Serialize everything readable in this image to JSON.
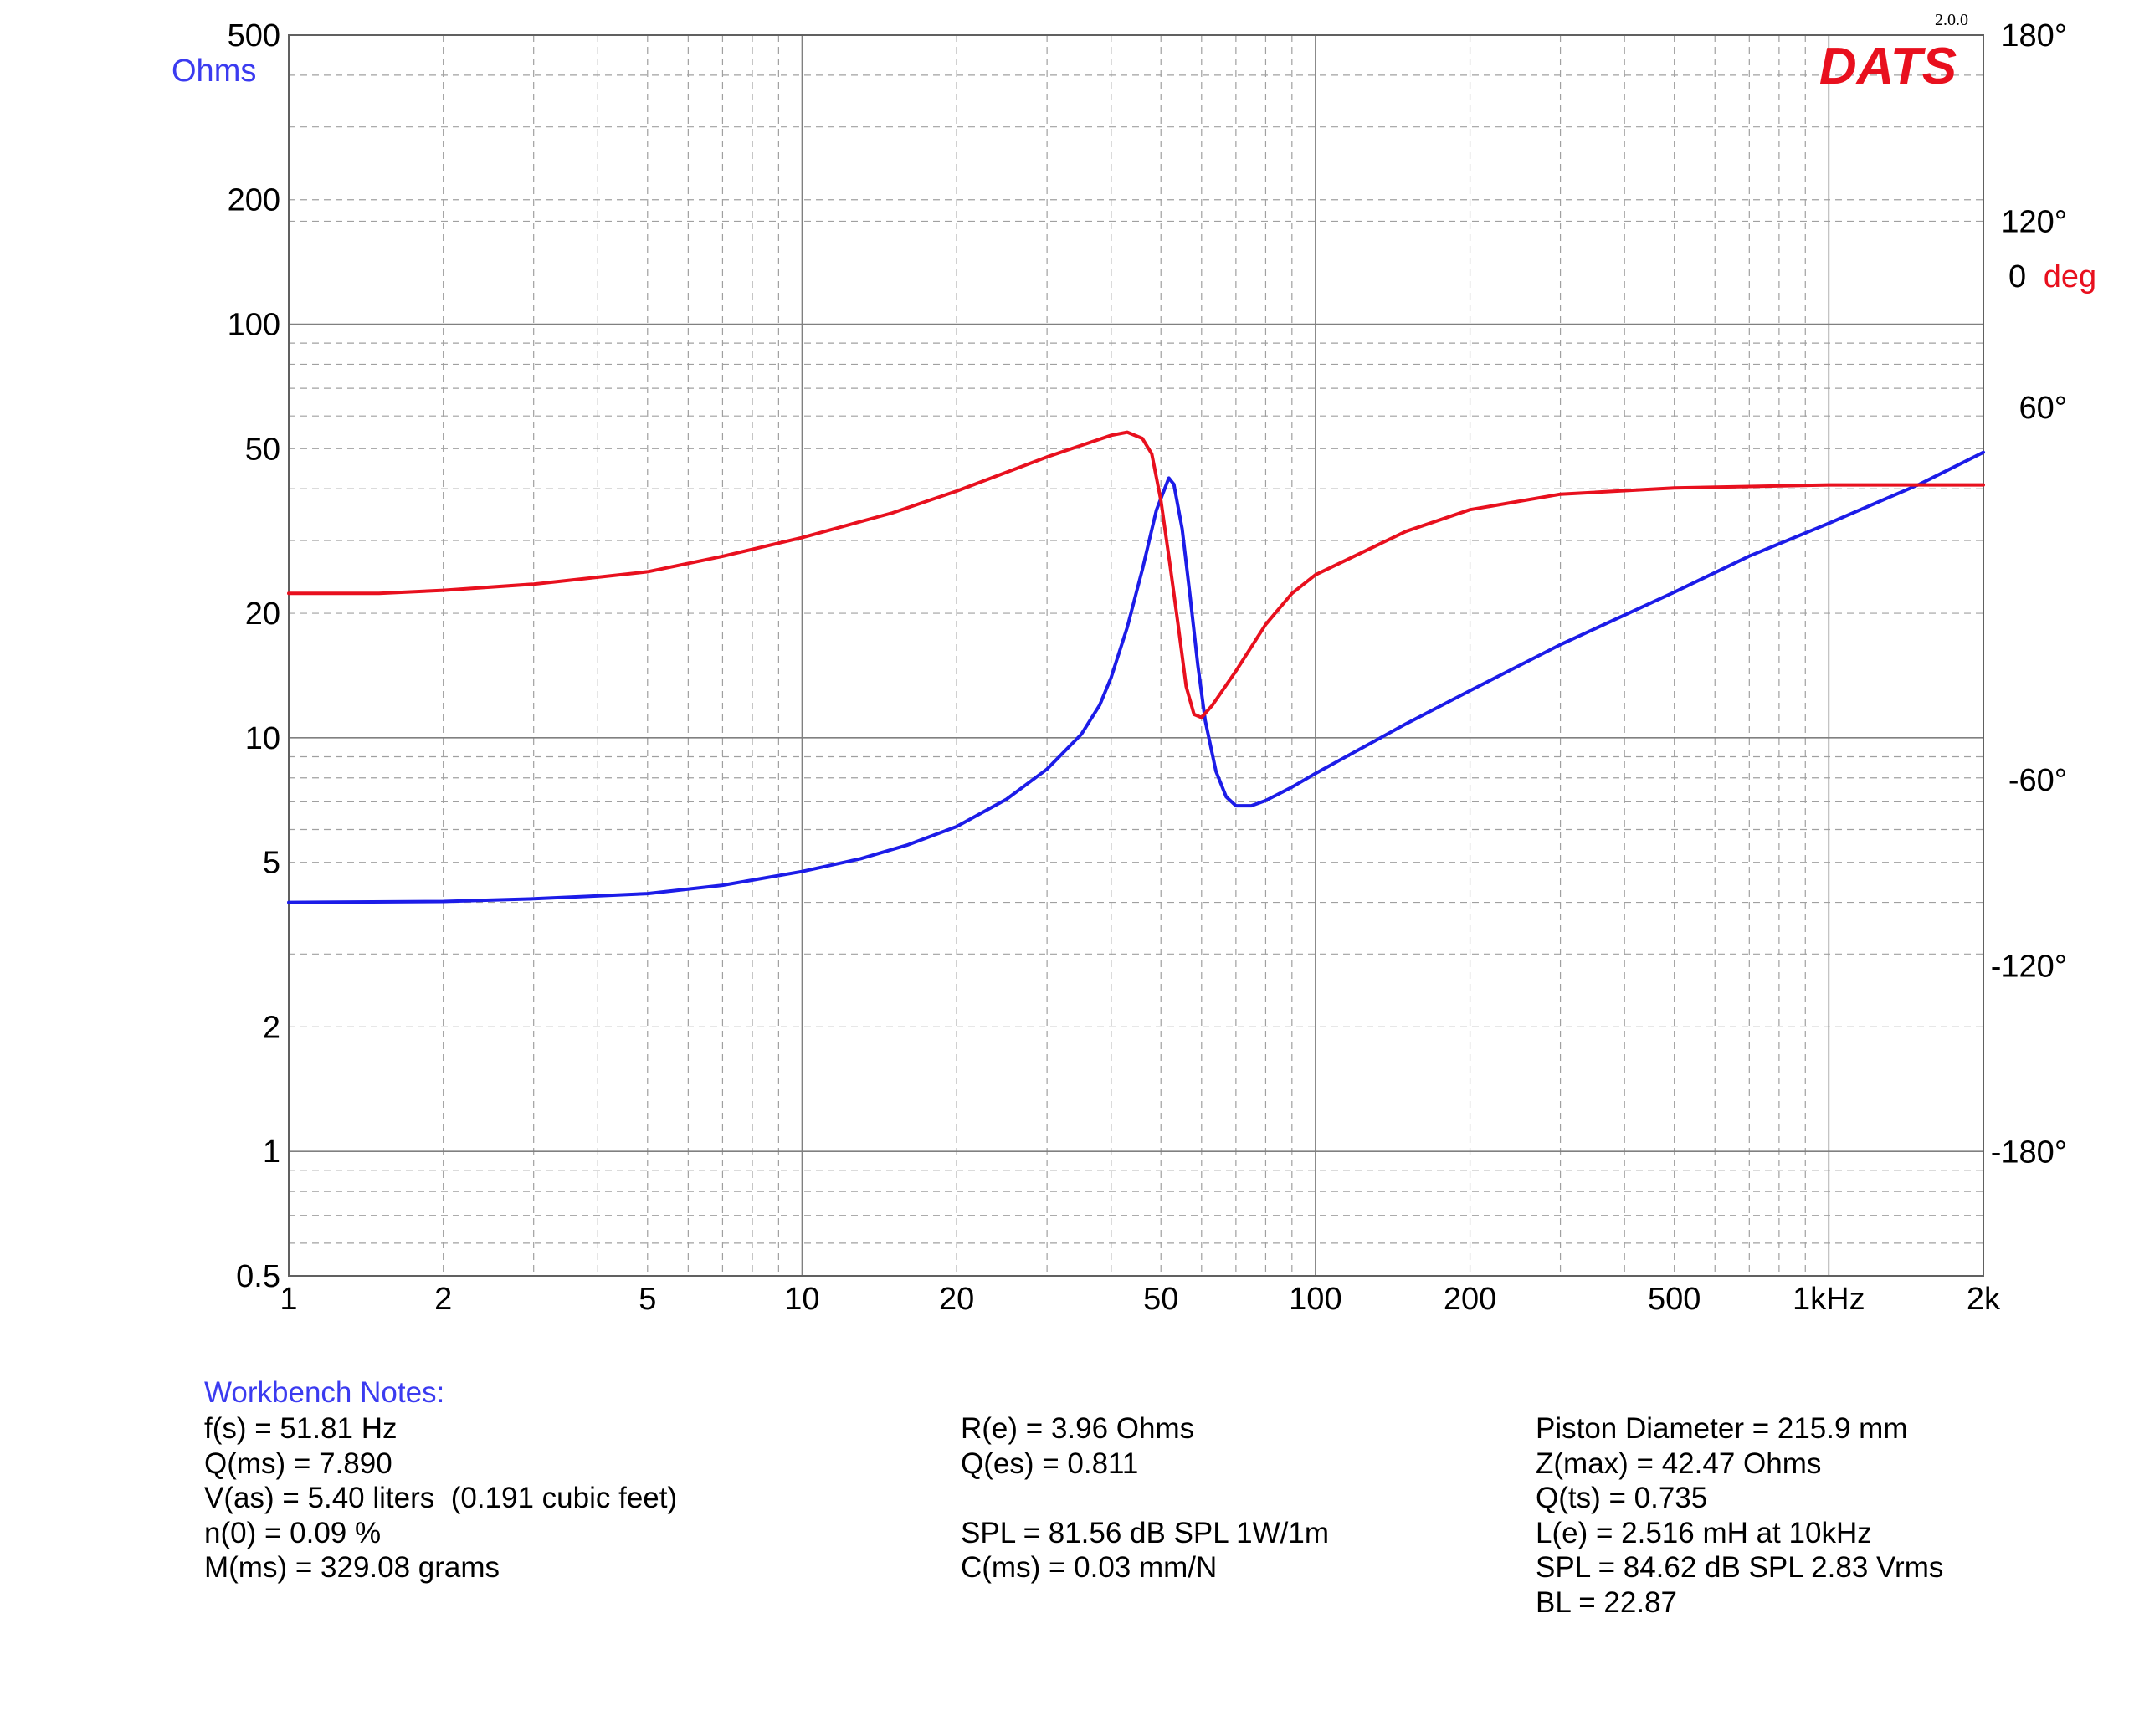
{
  "chart_data": {
    "type": "line",
    "title": "",
    "version": "2.0.0",
    "logo_text": "DATS",
    "xlabel": "",
    "x_scale": "log",
    "xlim": [
      1,
      2000
    ],
    "x_ticks": [
      {
        "value": 1,
        "label": "1"
      },
      {
        "value": 2,
        "label": "2"
      },
      {
        "value": 5,
        "label": "5"
      },
      {
        "value": 10,
        "label": "10"
      },
      {
        "value": 20,
        "label": "20"
      },
      {
        "value": 50,
        "label": "50"
      },
      {
        "value": 100,
        "label": "100"
      },
      {
        "value": 200,
        "label": "200"
      },
      {
        "value": 500,
        "label": "500"
      },
      {
        "value": 1000,
        "label": "1kHz"
      },
      {
        "value": 2000,
        "label": "2k"
      }
    ],
    "y_left": {
      "label": "Ohms",
      "scale": "log",
      "range": [
        0.5,
        500
      ],
      "ticks": [
        {
          "value": 500,
          "label": "500"
        },
        {
          "value": 200,
          "label": "200"
        },
        {
          "value": 100,
          "label": "100"
        },
        {
          "value": 50,
          "label": "50"
        },
        {
          "value": 20,
          "label": "20"
        },
        {
          "value": 10,
          "label": "10"
        },
        {
          "value": 5,
          "label": "5"
        },
        {
          "value": 2,
          "label": "2"
        },
        {
          "value": 1,
          "label": "1"
        },
        {
          "value": 0.5,
          "label": "0.5"
        }
      ]
    },
    "y_right": {
      "label_value": "0",
      "label_unit": "deg",
      "range": [
        -220,
        180
      ],
      "ticks": [
        {
          "value": 180,
          "label": "180°"
        },
        {
          "value": 120,
          "label": "120°"
        },
        {
          "value": 60,
          "label": "60°"
        },
        {
          "value": -60,
          "label": "-60°"
        },
        {
          "value": -120,
          "label": "-120°"
        },
        {
          "value": -180,
          "label": "-180°"
        }
      ]
    },
    "grid": true,
    "series": [
      {
        "key": "impedance",
        "axis": "left",
        "color": "#1c1ce8",
        "points": [
          [
            1,
            4.0
          ],
          [
            2,
            4.02
          ],
          [
            3,
            4.08
          ],
          [
            5,
            4.2
          ],
          [
            7,
            4.4
          ],
          [
            10,
            4.75
          ],
          [
            13,
            5.1
          ],
          [
            16,
            5.5
          ],
          [
            20,
            6.1
          ],
          [
            25,
            7.1
          ],
          [
            30,
            8.4
          ],
          [
            35,
            10.2
          ],
          [
            38,
            12.0
          ],
          [
            40,
            14.0
          ],
          [
            43,
            18.5
          ],
          [
            46,
            25.5
          ],
          [
            49,
            35.5
          ],
          [
            51.81,
            42.47
          ],
          [
            53,
            41.0
          ],
          [
            55,
            32.0
          ],
          [
            57,
            22.0
          ],
          [
            59,
            15.0
          ],
          [
            61,
            11.0
          ],
          [
            64,
            8.3
          ],
          [
            67,
            7.2
          ],
          [
            70,
            6.85
          ],
          [
            75,
            6.85
          ],
          [
            80,
            7.05
          ],
          [
            90,
            7.6
          ],
          [
            100,
            8.2
          ],
          [
            150,
            10.8
          ],
          [
            200,
            13.0
          ],
          [
            300,
            16.8
          ],
          [
            500,
            22.5
          ],
          [
            700,
            27.5
          ],
          [
            1000,
            33.0
          ],
          [
            1500,
            41.0
          ],
          [
            2000,
            49.0
          ]
        ]
      },
      {
        "key": "phase",
        "axis": "right",
        "color": "#e8101e",
        "points": [
          [
            1,
            0
          ],
          [
            1.5,
            0
          ],
          [
            2,
            1
          ],
          [
            3,
            3
          ],
          [
            5,
            7
          ],
          [
            7,
            12
          ],
          [
            10,
            18
          ],
          [
            15,
            26
          ],
          [
            20,
            33
          ],
          [
            30,
            44
          ],
          [
            40,
            51
          ],
          [
            43,
            52
          ],
          [
            46,
            50
          ],
          [
            48,
            45
          ],
          [
            50,
            30
          ],
          [
            52,
            10
          ],
          [
            54,
            -10
          ],
          [
            56,
            -30
          ],
          [
            58,
            -39
          ],
          [
            60,
            -40
          ],
          [
            63,
            -36
          ],
          [
            70,
            -25
          ],
          [
            80,
            -10
          ],
          [
            90,
            0
          ],
          [
            100,
            6
          ],
          [
            150,
            20
          ],
          [
            200,
            27
          ],
          [
            300,
            32
          ],
          [
            500,
            34
          ],
          [
            1000,
            35
          ],
          [
            2000,
            35
          ]
        ]
      }
    ]
  },
  "notes": {
    "title": "Workbench Notes:",
    "col1": [
      "f(s) = 51.81 Hz",
      "Q(ms) = 7.890",
      "V(as) = 5.40 liters  (0.191 cubic feet)",
      "n(0) = 0.09 %",
      "M(ms) = 329.08 grams"
    ],
    "col2": [
      "R(e) = 3.96 Ohms",
      "Q(es) = 0.811",
      "",
      "SPL = 81.56 dB SPL 1W/1m",
      "C(ms) = 0.03 mm/N"
    ],
    "col3": [
      "Piston Diameter = 215.9 mm",
      "Z(max) = 42.47 Ohms",
      "Q(ts) = 0.735",
      "L(e) = 2.516 mH at 10kHz",
      "SPL = 84.62 dB SPL 2.83 Vrms",
      "BL = 22.87"
    ]
  }
}
